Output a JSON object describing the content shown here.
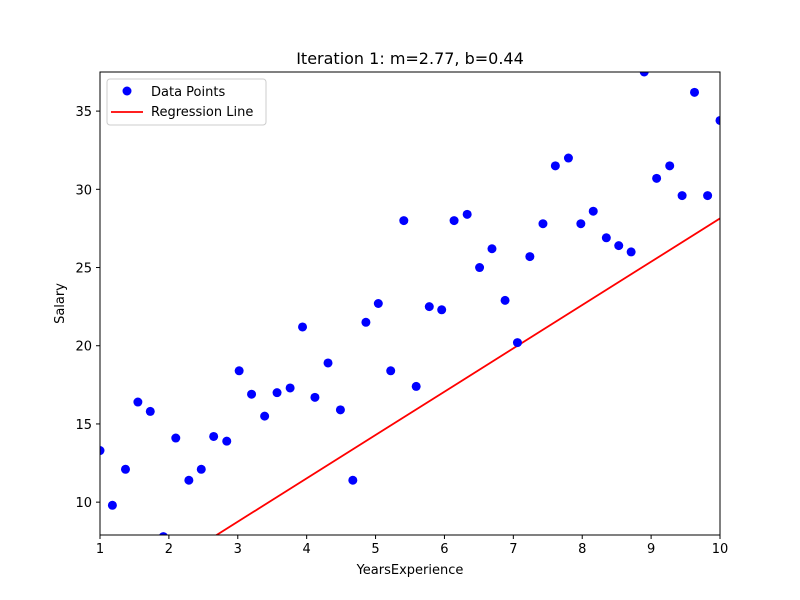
{
  "chart_data": {
    "type": "scatter",
    "title": "Iteration 1: m=2.77, b=0.44",
    "xlabel": "YearsExperience",
    "ylabel": "Salary",
    "xlim": [
      1,
      10
    ],
    "ylim": [
      7.9,
      37.5
    ],
    "xticks": [
      "1",
      "2",
      "3",
      "4",
      "5",
      "6",
      "7",
      "8",
      "9",
      "10"
    ],
    "yticks": [
      "10",
      "15",
      "20",
      "25",
      "30",
      "35"
    ],
    "grid": false,
    "legend_position": "top-left",
    "series": [
      {
        "name": "Data Points",
        "kind": "scatter",
        "color": "#0000ff",
        "x": [
          1.0,
          1.18,
          1.37,
          1.55,
          1.73,
          1.92,
          2.1,
          2.29,
          2.47,
          2.65,
          2.84,
          3.02,
          3.2,
          3.39,
          3.57,
          3.76,
          3.94,
          4.12,
          4.31,
          4.49,
          4.67,
          4.86,
          5.04,
          5.22,
          5.41,
          5.59,
          5.78,
          5.96,
          6.14,
          6.33,
          6.51,
          6.69,
          6.88,
          7.06,
          7.24,
          7.43,
          7.61,
          7.8,
          7.98,
          8.16,
          8.35,
          8.53,
          8.71,
          8.9,
          9.08,
          9.27,
          9.45,
          9.63,
          9.82,
          10.0
        ],
        "y": [
          13.3,
          9.8,
          12.1,
          16.4,
          15.8,
          7.8,
          14.1,
          11.4,
          12.1,
          14.2,
          13.9,
          18.4,
          16.9,
          15.5,
          17.0,
          17.3,
          21.2,
          16.7,
          18.9,
          15.9,
          11.4,
          21.5,
          22.7,
          18.4,
          28.0,
          17.4,
          22.5,
          22.3,
          28.0,
          28.4,
          25.0,
          26.2,
          22.9,
          20.2,
          25.7,
          27.8,
          31.5,
          32.0,
          27.8,
          28.6,
          26.9,
          26.4,
          26.0,
          37.5,
          30.7,
          31.5,
          29.6,
          36.2,
          29.6,
          34.4
        ]
      },
      {
        "name": "Regression Line",
        "kind": "line",
        "color": "#ff0000",
        "slope": 2.77,
        "intercept": 0.44
      }
    ]
  }
}
